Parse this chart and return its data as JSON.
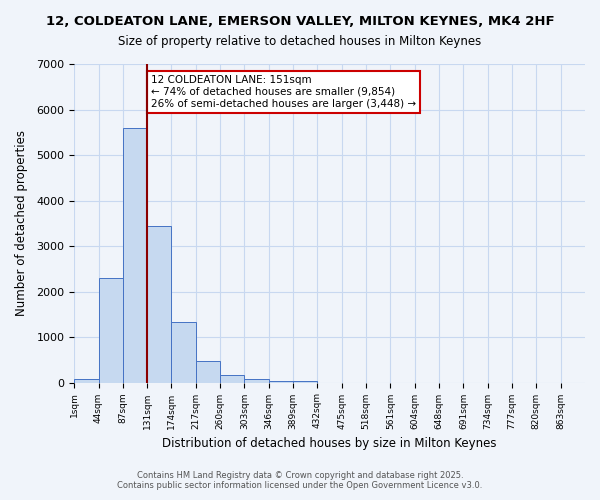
{
  "title_line1": "12, COLDEATON LANE, EMERSON VALLEY, MILTON KEYNES, MK4 2HF",
  "title_line2": "Size of property relative to detached houses in Milton Keynes",
  "xlabel": "Distribution of detached houses by size in Milton Keynes",
  "ylabel": "Number of detached properties",
  "bar_values": [
    75,
    2300,
    5600,
    3450,
    1330,
    480,
    170,
    80,
    40,
    30,
    0,
    0,
    0,
    0,
    0,
    0,
    0,
    0,
    0,
    0
  ],
  "categories": [
    "1sqm",
    "44sqm",
    "87sqm",
    "131sqm",
    "174sqm",
    "217sqm",
    "260sqm",
    "303sqm",
    "346sqm",
    "389sqm",
    "432sqm",
    "475sqm",
    "518sqm",
    "561sqm",
    "604sqm",
    "648sqm",
    "691sqm",
    "734sqm",
    "777sqm",
    "820sqm",
    "863sqm"
  ],
  "bar_color": "#c6d9f0",
  "bar_edge_color": "#4472c4",
  "vline_x": 3,
  "vline_color": "#8b0000",
  "annotation_text": "12 COLDEATON LANE: 151sqm\n← 74% of detached houses are smaller (9,854)\n26% of semi-detached houses are larger (3,448) →",
  "annotation_box_color": "white",
  "annotation_box_edge": "#cc0000",
  "ylim": [
    0,
    7000
  ],
  "yticks": [
    0,
    1000,
    2000,
    3000,
    4000,
    5000,
    6000,
    7000
  ],
  "footer_line1": "Contains HM Land Registry data © Crown copyright and database right 2025.",
  "footer_line2": "Contains public sector information licensed under the Open Government Licence v3.0.",
  "bg_color": "#f0f4fa",
  "grid_color": "#c8d8f0"
}
